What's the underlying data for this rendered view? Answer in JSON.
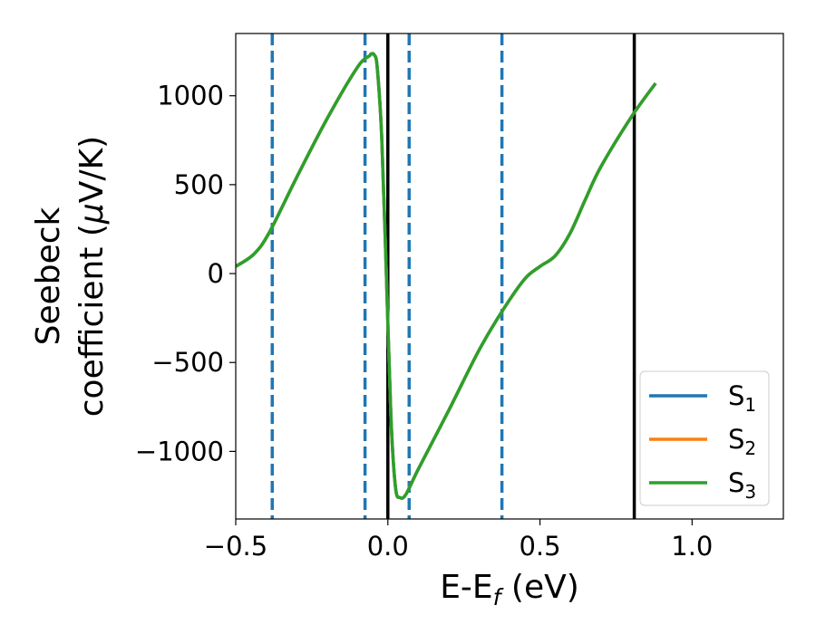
{
  "chart_data": {
    "type": "line",
    "title": "",
    "xlabel": "E-E",
    "xlabel_sub": "f",
    "xlabel_unit": " (eV)",
    "ylabel_line1": "Seebeck",
    "ylabel_line2_pre": "coefficient  (",
    "ylabel_mu": "μ",
    "ylabel_line2_post": "V/K)",
    "xlim": [
      -0.5,
      1.3
    ],
    "ylim": [
      -1380,
      1350
    ],
    "xticks": [
      -0.5,
      0.0,
      0.5,
      1.0
    ],
    "xtick_labels": [
      "−0.5",
      "0.0",
      "0.5",
      "1.0"
    ],
    "yticks": [
      -1000,
      -500,
      0,
      500,
      1000
    ],
    "ytick_labels": [
      "−1000",
      "−500",
      "0",
      "500",
      "1000"
    ],
    "grid": false,
    "legend_position": "bottom-right",
    "series": [
      {
        "name": "S",
        "sub": "1",
        "color": "#1f77b4",
        "x": [
          -0.5,
          -0.44,
          -0.39,
          -0.3,
          -0.2,
          -0.1,
          -0.06,
          -0.055,
          -0.045,
          -0.035,
          -0.02,
          -0.005,
          0.01,
          0.025,
          0.04,
          0.06,
          0.1,
          0.2,
          0.3,
          0.38,
          0.45,
          0.5,
          0.55,
          0.6,
          0.65,
          0.7,
          0.8,
          0.88
        ],
        "values": [
          40,
          110,
          230,
          540,
          870,
          1160,
          1225,
          1235,
          1230,
          1160,
          760,
          0,
          -800,
          -1200,
          -1260,
          -1240,
          -1100,
          -770,
          -430,
          -200,
          -30,
          40,
          100,
          230,
          420,
          600,
          880,
          1070
        ]
      },
      {
        "name": "S",
        "sub": "2",
        "color": "#ff7f0e",
        "x": [
          -0.5,
          -0.44,
          -0.39,
          -0.3,
          -0.2,
          -0.1,
          -0.06,
          -0.055,
          -0.045,
          -0.035,
          -0.02,
          -0.005,
          0.01,
          0.025,
          0.04,
          0.06,
          0.1,
          0.2,
          0.3,
          0.38,
          0.45,
          0.5,
          0.55,
          0.6,
          0.65,
          0.7,
          0.8,
          0.88
        ],
        "values": [
          40,
          110,
          230,
          540,
          870,
          1160,
          1225,
          1235,
          1230,
          1160,
          760,
          0,
          -800,
          -1200,
          -1260,
          -1240,
          -1100,
          -770,
          -430,
          -200,
          -30,
          40,
          100,
          230,
          420,
          600,
          880,
          1070
        ]
      },
      {
        "name": "S",
        "sub": "3",
        "color": "#2ca02c",
        "x": [
          -0.5,
          -0.44,
          -0.39,
          -0.3,
          -0.2,
          -0.1,
          -0.06,
          -0.055,
          -0.045,
          -0.035,
          -0.02,
          -0.005,
          0.01,
          0.025,
          0.04,
          0.06,
          0.1,
          0.2,
          0.3,
          0.38,
          0.45,
          0.5,
          0.55,
          0.6,
          0.65,
          0.7,
          0.8,
          0.88
        ],
        "values": [
          40,
          110,
          230,
          540,
          870,
          1160,
          1225,
          1235,
          1230,
          1160,
          760,
          0,
          -800,
          -1200,
          -1260,
          -1240,
          -1100,
          -770,
          -430,
          -200,
          -30,
          40,
          100,
          230,
          420,
          600,
          880,
          1070
        ]
      }
    ],
    "vlines_dashed": {
      "color": "#1f77b4",
      "x": [
        -0.38,
        -0.075,
        0.07,
        0.375
      ]
    },
    "vlines_solid": {
      "color": "#000000",
      "x": [
        0.0,
        0.81
      ]
    }
  }
}
